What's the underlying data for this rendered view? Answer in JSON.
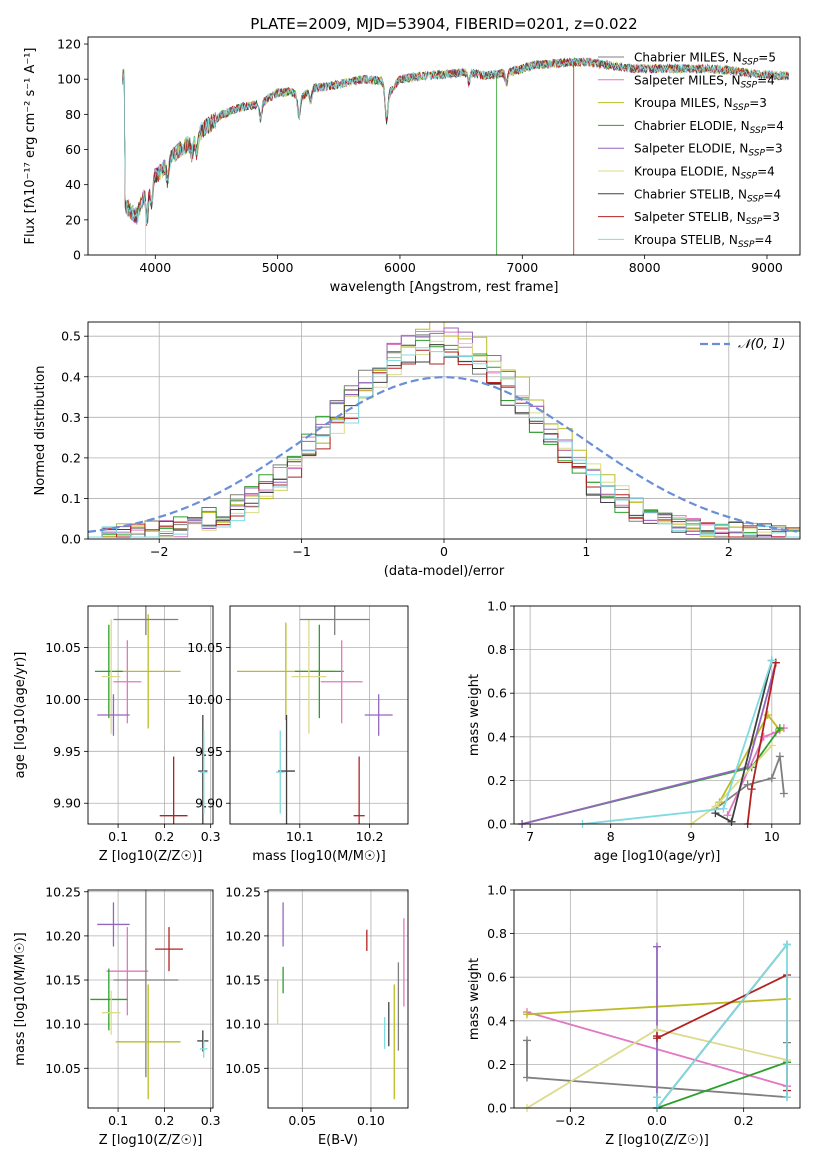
{
  "figure": {
    "title": "PLATE=2009, MJD=53904, FIBERID=0201, z=0.022"
  },
  "colors": {
    "Chabrier MILES": "#7f7f7f",
    "Salpeter MILES": "#e377c2",
    "Kroupa MILES": "#bcbd22",
    "Chabrier ELODIE": "#2ca02c",
    "Salpeter ELODIE": "#9467bd",
    "Kroupa ELODIE": "#dbdb8d",
    "Chabrier STELIB": "#404040",
    "Salpeter STELIB": "#b22222",
    "Kroupa STELIB": "#7fdbe0",
    "normal_curve": "#6a8fd8"
  },
  "chart_data": [
    {
      "id": "spectrum",
      "type": "line",
      "title": "PLATE=2009, MJD=53904, FIBERID=0201, z=0.022",
      "xlabel": "wavelength [Angstrom, rest frame]",
      "ylabel": "Flux [f_λ 10^-17 erg cm^-2 s^-1 A^-1]",
      "xlim": [
        3450,
        9270
      ],
      "ylim": [
        0,
        124
      ],
      "xticks": [
        4000,
        5000,
        6000,
        7000,
        8000,
        9000
      ],
      "yticks": [
        0,
        20,
        40,
        60,
        80,
        100,
        120
      ],
      "grid": false,
      "legend_position": "upper-right",
      "legend": [
        "Chabrier MILES, N_SSP=5",
        "Salpeter MILES, N_SSP=4",
        "Kroupa MILES, N_SSP=3",
        "Chabrier ELODIE, N_SSP=4",
        "Salpeter ELODIE, N_SSP=3",
        "Kroupa ELODIE, N_SSP=4",
        "Chabrier STELIB, N_SSP=4",
        "Salpeter STELIB, N_SSP=3",
        "Kroupa STELIB, N_SSP=4"
      ],
      "x": [
        3750,
        3850,
        3950,
        4050,
        4150,
        4250,
        4400,
        4550,
        4700,
        4850,
        5000,
        5100,
        5200,
        5300,
        5500,
        5700,
        5850,
        5900,
        6000,
        6200,
        6400,
        6560,
        6700,
        6900,
        7100,
        7300,
        7500,
        7700,
        7900,
        8100,
        8300,
        8500,
        8700,
        8900,
        9100
      ],
      "y": [
        28,
        22,
        42,
        48,
        57,
        62,
        72,
        80,
        84,
        86,
        92,
        93,
        90,
        95,
        97,
        100,
        99,
        91,
        100,
        102,
        103,
        104,
        102,
        104,
        108,
        109,
        110,
        108,
        106,
        106,
        106,
        106,
        105,
        103,
        102
      ],
      "dropouts": [
        {
          "series": "Kroupa ELODIE",
          "x": 3920
        },
        {
          "series": "Chabrier ELODIE",
          "x": 6790
        },
        {
          "series": "Salpeter STELIB",
          "x": 7420
        }
      ]
    },
    {
      "id": "residuals",
      "type": "step",
      "xlabel": "(data-model)/error",
      "ylabel": "Normed distribution",
      "xlim": [
        -2.5,
        2.5
      ],
      "ylim": [
        0,
        0.535
      ],
      "xticks": [
        -2,
        -1,
        0,
        1,
        2
      ],
      "yticks": [
        0.0,
        0.1,
        0.2,
        0.3,
        0.4,
        0.5
      ],
      "grid": true,
      "legend_position": "upper-right",
      "normal_curve": {
        "label": "𝒩(0, 1)",
        "mean": 0,
        "sigma": 1
      },
      "bin_edges_range": [
        -2.5,
        2.5
      ],
      "n_bins": 50,
      "peak_values": [
        0.47,
        0.49,
        0.51,
        0.48,
        0.5,
        0.47,
        0.45,
        0.44,
        0.46
      ]
    },
    {
      "id": "age_vs_Z",
      "type": "errorbar",
      "xlabel": "Z [log10(Z/Z☉)]",
      "ylabel": "age  [log10(age/yr)]",
      "xlim": [
        0.035,
        0.305
      ],
      "ylim": [
        9.88,
        10.09
      ],
      "xticks": [
        0.1,
        0.2,
        0.3
      ],
      "yticks": [
        9.9,
        9.95,
        10.0,
        10.05
      ],
      "grid": true,
      "points": [
        {
          "series": "Kroupa MILES",
          "x": 0.165,
          "xerr": 0.07,
          "y": 10.027,
          "yerr": 0.055
        },
        {
          "series": "Chabrier ELODIE",
          "x": 0.08,
          "xerr": 0.03,
          "y": 10.027,
          "yerr": 0.045
        },
        {
          "series": "Kroupa ELODIE",
          "x": 0.085,
          "xerr": 0.02,
          "y": 10.022,
          "yerr": 0.055
        },
        {
          "series": "Salpeter MILES",
          "x": 0.12,
          "xerr": 0.03,
          "y": 10.017,
          "yerr": 0.04
        },
        {
          "series": "Chabrier MILES",
          "x": 0.16,
          "xerr": 0.07,
          "y": 10.077,
          "yerr": 0.015
        },
        {
          "series": "Salpeter ELODIE",
          "x": 0.09,
          "xerr": 0.035,
          "y": 9.985,
          "yerr": 0.02
        },
        {
          "series": "Salpeter STELIB",
          "x": 0.22,
          "xerr": 0.03,
          "y": 9.888,
          "yerr": 0.057
        },
        {
          "series": "Chabrier STELIB",
          "x": 0.283,
          "xerr": 0.01,
          "y": 9.931,
          "yerr": 0.054
        },
        {
          "series": "Kroupa STELIB",
          "x": 0.285,
          "xerr": 0.008,
          "y": 9.93,
          "yerr": 0.04
        }
      ]
    },
    {
      "id": "age_vs_mass",
      "type": "errorbar",
      "xlabel": "mass [log10(M/M☉)]",
      "ylabel": "",
      "xlim": [
        10.0,
        10.255
      ],
      "ylim": [
        9.88,
        10.09
      ],
      "xticks": [
        10.1,
        10.2
      ],
      "yticks": [
        9.9,
        9.95,
        10.0,
        10.05
      ],
      "grid": true,
      "points": [
        {
          "series": "Kroupa MILES",
          "x": 10.08,
          "xerr": 0.07,
          "y": 10.027,
          "yerr": 0.047
        },
        {
          "series": "Chabrier ELODIE",
          "x": 10.128,
          "xerr": 0.035,
          "y": 10.027,
          "yerr": 0.045
        },
        {
          "series": "Kroupa ELODIE",
          "x": 10.113,
          "xerr": 0.025,
          "y": 10.022,
          "yerr": 0.055
        },
        {
          "series": "Salpeter MILES",
          "x": 10.16,
          "xerr": 0.03,
          "y": 10.017,
          "yerr": 0.04
        },
        {
          "series": "Chabrier MILES",
          "x": 10.15,
          "xerr": 0.05,
          "y": 10.077,
          "yerr": 0.015
        },
        {
          "series": "Salpeter ELODIE",
          "x": 10.213,
          "xerr": 0.02,
          "y": 9.985,
          "yerr": 0.02
        },
        {
          "series": "Salpeter STELIB",
          "x": 10.185,
          "xerr": 0.008,
          "y": 9.888,
          "yerr": 0.057
        },
        {
          "series": "Chabrier STELIB",
          "x": 10.081,
          "xerr": 0.012,
          "y": 9.931,
          "yerr": 0.054
        },
        {
          "series": "Kroupa STELIB",
          "x": 10.072,
          "xerr": 0.006,
          "y": 9.93,
          "yerr": 0.04
        }
      ]
    },
    {
      "id": "massweight_vs_age",
      "type": "line",
      "xlabel": "age  [log10(age/yr)]",
      "ylabel": "mass weight",
      "xlim": [
        6.8,
        10.35
      ],
      "ylim": [
        0.0,
        1.0
      ],
      "xticks": [
        7,
        8,
        9,
        10
      ],
      "yticks": [
        0.0,
        0.2,
        0.4,
        0.6,
        0.8,
        1.0
      ],
      "grid": true,
      "series": [
        {
          "name": "Chabrier MILES",
          "x": [
            9.3,
            9.7,
            10.0,
            10.1,
            10.15
          ],
          "y": [
            0.07,
            0.18,
            0.21,
            0.31,
            0.14
          ]
        },
        {
          "name": "Salpeter MILES",
          "x": [
            9.45,
            9.9,
            10.05,
            10.15
          ],
          "y": [
            0.04,
            0.4,
            0.42,
            0.44
          ]
        },
        {
          "name": "Kroupa MILES",
          "x": [
            9.35,
            9.95,
            10.1
          ],
          "y": [
            0.1,
            0.5,
            0.43
          ]
        },
        {
          "name": "Chabrier ELODIE",
          "x": [
            6.9,
            9.75,
            10.1
          ],
          "y": [
            0.0,
            0.26,
            0.44
          ]
        },
        {
          "name": "Salpeter ELODIE",
          "x": [
            6.9,
            9.7,
            10.05
          ],
          "y": [
            0.0,
            0.26,
            0.74
          ]
        },
        {
          "name": "Kroupa ELODIE",
          "x": [
            9.0,
            9.3,
            10.0
          ],
          "y": [
            0.0,
            0.08,
            0.36
          ]
        },
        {
          "name": "Chabrier STELIB",
          "x": [
            9.3,
            9.5,
            10.0
          ],
          "y": [
            0.05,
            0.01,
            0.75
          ]
        },
        {
          "name": "Salpeter STELIB",
          "x": [
            9.7,
            9.75,
            10.05
          ],
          "y": [
            0.0,
            0.16,
            0.74
          ]
        },
        {
          "name": "Kroupa STELIB",
          "x": [
            7.65,
            9.4,
            10.0
          ],
          "y": [
            0.0,
            0.07,
            0.75
          ]
        }
      ]
    },
    {
      "id": "mass_vs_Z",
      "type": "errorbar",
      "xlabel": "Z [log10(Z/Z☉)]",
      "ylabel": "mass [log10(M/M☉)]",
      "xlim": [
        0.035,
        0.305
      ],
      "ylim": [
        10.005,
        10.252
      ],
      "xticks": [
        0.1,
        0.2,
        0.3
      ],
      "yticks": [
        10.05,
        10.1,
        10.15,
        10.2,
        10.25
      ],
      "grid": true,
      "points": [
        {
          "series": "Salpeter ELODIE",
          "x": 0.09,
          "xerr": 0.035,
          "y": 10.213,
          "yerr": 0.025
        },
        {
          "series": "Salpeter STELIB",
          "x": 0.21,
          "xerr": 0.03,
          "y": 10.185,
          "yerr": 0.025
        },
        {
          "series": "Salpeter MILES",
          "x": 0.12,
          "xerr": 0.045,
          "y": 10.16,
          "yerr": 0.05
        },
        {
          "series": "Chabrier MILES",
          "x": 0.16,
          "xerr": 0.07,
          "y": 10.15,
          "yerr": 0.11
        },
        {
          "series": "Chabrier ELODIE",
          "x": 0.08,
          "xerr": 0.04,
          "y": 10.128,
          "yerr": 0.035
        },
        {
          "series": "Kroupa ELODIE",
          "x": 0.085,
          "xerr": 0.02,
          "y": 10.113,
          "yerr": 0.025
        },
        {
          "series": "Kroupa MILES",
          "x": 0.165,
          "xerr": 0.07,
          "y": 10.08,
          "yerr": 0.065
        },
        {
          "series": "Chabrier STELIB",
          "x": 0.283,
          "xerr": 0.012,
          "y": 10.081,
          "yerr": 0.012
        },
        {
          "series": "Kroupa STELIB",
          "x": 0.285,
          "xerr": 0.008,
          "y": 10.072,
          "yerr": 0.01
        }
      ]
    },
    {
      "id": "mass_vs_ebv",
      "type": "errorbar",
      "xlabel": "E(B-V)",
      "ylabel": "",
      "xlim": [
        0.025,
        0.127
      ],
      "ylim": [
        10.005,
        10.252
      ],
      "xticks": [
        0.05,
        0.1
      ],
      "yticks": [
        10.05,
        10.1,
        10.15,
        10.2,
        10.25
      ],
      "grid": true,
      "points": [
        {
          "series": "Salpeter ELODIE",
          "x": 0.036,
          "xerr": 0,
          "y": 10.213,
          "yerr": 0.025
        },
        {
          "series": "Chabrier ELODIE",
          "x": 0.036,
          "xerr": 0,
          "y": 10.15,
          "yerr": 0.015
        },
        {
          "series": "Kroupa ELODIE",
          "x": 0.032,
          "xerr": 0,
          "y": 10.125,
          "yerr": 0.025
        },
        {
          "series": "Salpeter STELIB",
          "x": 0.097,
          "xerr": 0,
          "y": 10.195,
          "yerr": 0.012
        },
        {
          "series": "Chabrier STELIB",
          "x": 0.113,
          "xerr": 0,
          "y": 10.1,
          "yerr": 0.025
        },
        {
          "series": "Kroupa STELIB",
          "x": 0.11,
          "xerr": 0,
          "y": 10.09,
          "yerr": 0.018
        },
        {
          "series": "Kroupa MILES",
          "x": 0.117,
          "xerr": 0,
          "y": 10.08,
          "yerr": 0.065
        },
        {
          "series": "Chabrier MILES",
          "x": 0.12,
          "xerr": 0,
          "y": 10.12,
          "yerr": 0.05
        },
        {
          "series": "Salpeter MILES",
          "x": 0.124,
          "xerr": 0,
          "y": 10.17,
          "yerr": 0.05
        }
      ]
    },
    {
      "id": "massweight_vs_Z",
      "type": "line",
      "xlabel": "Z [log10(Z/Z☉)]",
      "ylabel": "mass weight",
      "xlim": [
        -0.33,
        0.33
      ],
      "ylim": [
        0.0,
        1.0
      ],
      "xticks": [
        -0.2,
        0.0,
        0.2
      ],
      "yticks": [
        0.0,
        0.2,
        0.4,
        0.6,
        0.8,
        1.0
      ],
      "grid": true,
      "series": [
        {
          "name": "Chabrier MILES",
          "x": [
            -0.3,
            -0.3,
            0.3,
            0.3,
            0.3
          ],
          "y": [
            0.31,
            0.14,
            0.05,
            0.21,
            0.3
          ]
        },
        {
          "name": "Salpeter MILES",
          "x": [
            -0.3,
            0.3
          ],
          "y": [
            0.44,
            0.1
          ]
        },
        {
          "name": "Kroupa MILES",
          "x": [
            -0.3,
            0.3
          ],
          "y": [
            0.43,
            0.5
          ]
        },
        {
          "name": "Chabrier ELODIE",
          "x": [
            0.0,
            0.0,
            0.3
          ],
          "y": [
            0.05,
            0.0,
            0.21
          ]
        },
        {
          "name": "Salpeter ELODIE",
          "x": [
            0.0,
            0.0
          ],
          "y": [
            0.74,
            0.0
          ]
        },
        {
          "name": "Kroupa ELODIE",
          "x": [
            -0.3,
            0.0,
            0.3
          ],
          "y": [
            0.0,
            0.36,
            0.22
          ]
        },
        {
          "name": "Chabrier STELIB",
          "x": [
            0.0,
            0.3
          ],
          "y": [
            0.0,
            0.75
          ]
        },
        {
          "name": "Salpeter STELIB",
          "x": [
            0.0,
            0.0,
            0.3,
            0.3
          ],
          "y": [
            0.33,
            0.32,
            0.61,
            0.08
          ]
        },
        {
          "name": "Kroupa STELIB",
          "x": [
            0.0,
            0.0,
            0.3,
            0.3
          ],
          "y": [
            0.05,
            0.0,
            0.75,
            0.05
          ]
        }
      ]
    }
  ]
}
